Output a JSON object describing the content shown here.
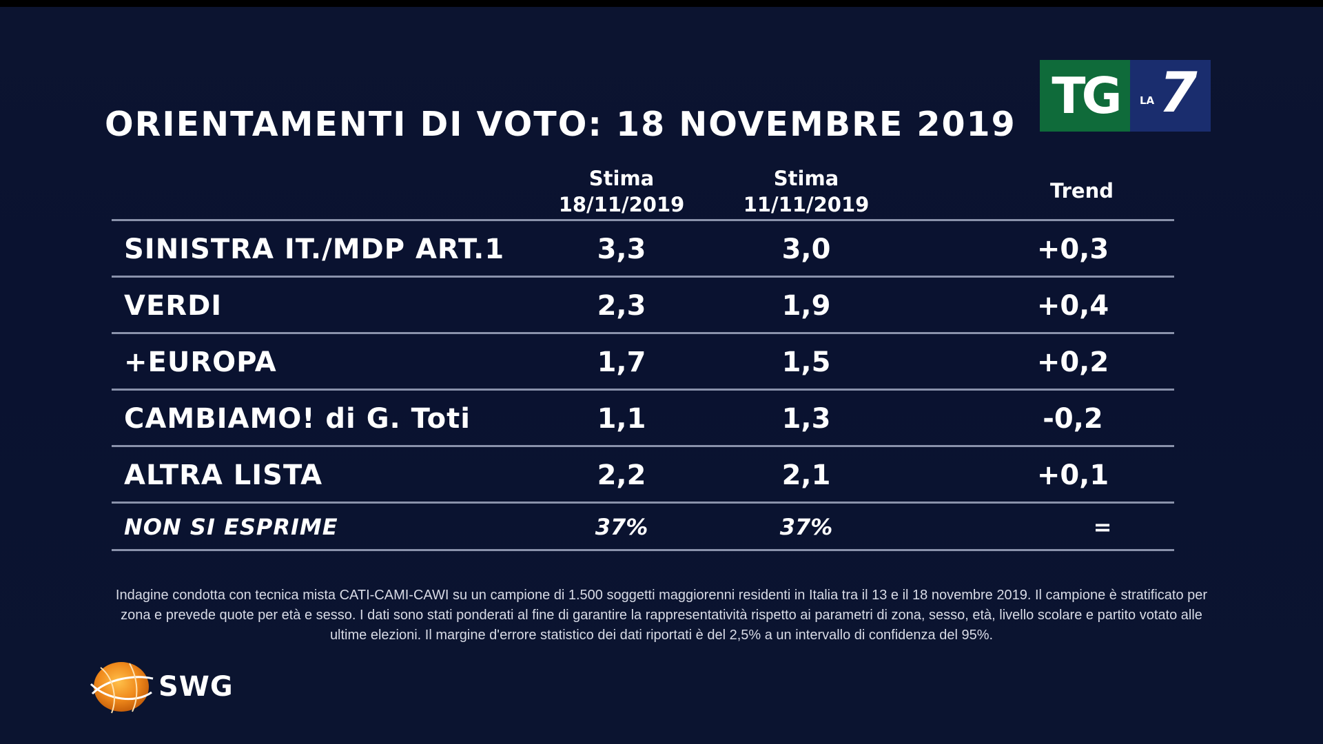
{
  "title": "ORIENTAMENTI DI VOTO: 18 NOVEMBRE 2019",
  "logo": {
    "tg": "TG",
    "la": "LA",
    "seven": "7"
  },
  "chart_data": {
    "type": "table",
    "columns": [
      {
        "line1": "Stima",
        "line2": "18/11/2019"
      },
      {
        "line1": "Stima",
        "line2": "11/11/2019"
      },
      {
        "line1": "Trend",
        "line2": ""
      }
    ],
    "rows": [
      {
        "party": "SINISTRA IT./MDP ART.1",
        "stima_18": "3,3",
        "stima_11": "3,0",
        "trend": "+0,3"
      },
      {
        "party": "VERDI",
        "stima_18": "2,3",
        "stima_11": "1,9",
        "trend": "+0,4"
      },
      {
        "party": "+EUROPA",
        "stima_18": "1,7",
        "stima_11": "1,5",
        "trend": "+0,2"
      },
      {
        "party": "CAMBIAMO! di G. Toti",
        "stima_18": "1,1",
        "stima_11": "1,3",
        "trend": "-0,2"
      },
      {
        "party": "ALTRA LISTA",
        "stima_18": "2,2",
        "stima_11": "2,1",
        "trend": "+0,1"
      },
      {
        "party": "NON SI ESPRIME",
        "stima_18": "37%",
        "stima_11": "37%",
        "trend": "="
      }
    ]
  },
  "footnote": "Indagine condotta con tecnica mista CATI-CAMI-CAWI su un campione di 1.500 soggetti maggiorenni residenti in Italia tra il 13 e il 18 novembre 2019. Il campione è stratificato per zona e prevede quote per età e sesso. I dati sono stati ponderati al fine di garantire la rappresentatività rispetto ai parametri di zona, sesso, età, livello scolare e partito votato alle ultime elezioni. Il margine d'errore statistico dei dati riportati è del 2,5% a un intervallo di confidenza del 95%.",
  "source": {
    "name": "SWG",
    "icon": "swg-globe-icon"
  },
  "colors": {
    "background": "#0b1430",
    "tg_green": "#0f6b3a",
    "la7_blue": "#1a2d6e",
    "rule": "#8a92ab",
    "swg_orange": "#f08a1c"
  }
}
